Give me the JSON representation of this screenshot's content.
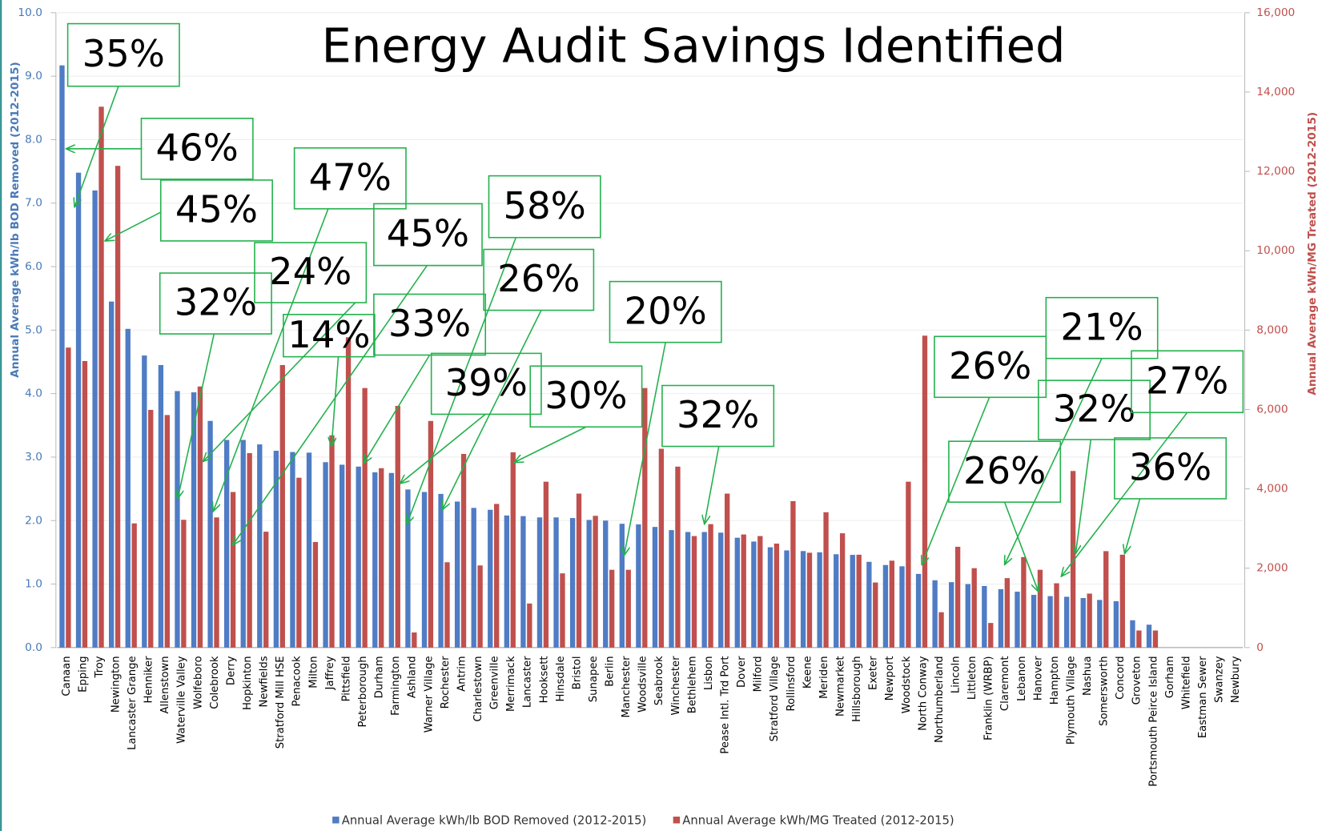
{
  "chart_data": {
    "type": "bar",
    "title": "Energy Audit Savings Identified",
    "y_label": "Annual Average kWh/lb BOD Removed (2012-2015)",
    "y2_label": "Annual Average kWh/MG Treated (2012-2015)",
    "categories": [
      "Canaan",
      "Epping",
      "Troy",
      "Newington",
      "Lancaster Grange",
      "Henniker",
      "Allenstown",
      "Waterville Valley",
      "Wolfeboro",
      "Colebrook",
      "Derry",
      "Hopkinton",
      "Newfields",
      "Stratford Mill HSE",
      "Penacook",
      "Milton",
      "Jaffrey",
      "Pittsfield",
      "Peterborough",
      "Durham",
      "Farmington",
      "Ashland",
      "Warner Village",
      "Rochester",
      "Antrim",
      "Charlestown",
      "Greenville",
      "Merrimack",
      "Lancaster",
      "Hooksett",
      "Hinsdale",
      "Bristol",
      "Sunapee",
      "Berlin",
      "Manchester",
      "Woodsville",
      "Seabrook",
      "Winchester",
      "Bethlehem",
      "Lisbon",
      "Pease Intl. Trd Port",
      "Dover",
      "Milford",
      "Stratford Village",
      "Rollinsford",
      "Keene",
      "Meriden",
      "Newmarket",
      "Hillsborough",
      "Exeter",
      "Newport",
      "Woodstock",
      "North Conway",
      "Northumberland",
      "Lincoln",
      "Littleton",
      "Franklin (WRBP)",
      "Claremont",
      "Lebanon",
      "Hanover",
      "Hampton",
      "Plymouth Village",
      "Nashua",
      "Somersworth",
      "Concord",
      "Groveton",
      "Portsmouth Peirce Island",
      "Gorham",
      "Whitefield",
      "Eastman Sewer",
      "Swanzey",
      "Newbury"
    ],
    "series": [
      {
        "name": "Annual Average kWh/lb BOD Removed (2012-2015)",
        "color": "#4f7cc4",
        "axis": "y",
        "values": [
          9.17,
          7.48,
          7.2,
          5.45,
          5.02,
          4.6,
          4.45,
          4.04,
          4.02,
          3.57,
          3.27,
          3.27,
          3.2,
          3.1,
          3.08,
          3.07,
          2.92,
          2.88,
          2.85,
          2.76,
          2.75,
          2.49,
          2.45,
          2.42,
          2.3,
          2.2,
          2.17,
          2.08,
          2.07,
          2.05,
          2.05,
          2.04,
          2.01,
          2.0,
          1.95,
          1.94,
          1.9,
          1.85,
          1.82,
          1.82,
          1.81,
          1.73,
          1.67,
          1.58,
          1.53,
          1.52,
          1.5,
          1.47,
          1.46,
          1.35,
          1.3,
          1.28,
          1.16,
          1.06,
          1.03,
          1.0,
          0.97,
          0.92,
          0.88,
          0.83,
          0.81,
          0.8,
          0.78,
          0.75,
          0.73,
          0.43,
          0.36,
          null,
          null,
          null,
          null,
          null
        ]
      },
      {
        "name": "Annual Average kWh/MG Treated (2012-2015)",
        "color": "#c0504d",
        "axis": "y2",
        "values": [
          7560,
          7220,
          13630,
          12140,
          3130,
          5990,
          5860,
          3220,
          6580,
          3280,
          3920,
          4900,
          2920,
          7120,
          4280,
          2660,
          5350,
          7820,
          6540,
          4520,
          6090,
          380,
          5710,
          2150,
          4880,
          2070,
          3620,
          4920,
          1110,
          4180,
          1870,
          3880,
          3320,
          1960,
          1960,
          6540,
          5010,
          4560,
          2810,
          3110,
          3880,
          2850,
          2810,
          2620,
          3690,
          2390,
          3410,
          2880,
          2340,
          1640,
          2190,
          4180,
          7860,
          890,
          2540,
          2000,
          620,
          1750,
          2280,
          1960,
          1620,
          4450,
          1360,
          2430,
          2340,
          430,
          430,
          null,
          null,
          null,
          null,
          null
        ]
      }
    ],
    "ylim": [
      0,
      10
    ],
    "yticks": [
      {
        "value": 0,
        "label": "0.0"
      },
      {
        "value": 1,
        "label": "1.0"
      },
      {
        "value": 2,
        "label": "2.0"
      },
      {
        "value": 3,
        "label": "3.0"
      },
      {
        "value": 4,
        "label": "4.0"
      },
      {
        "value": 5,
        "label": "5.0"
      },
      {
        "value": 6,
        "label": "6.0"
      },
      {
        "value": 7,
        "label": "7.0"
      },
      {
        "value": 8,
        "label": "8.0"
      },
      {
        "value": 9,
        "label": "9.0"
      },
      {
        "value": 10,
        "label": "10.0"
      }
    ],
    "y2lim": [
      0,
      16000
    ],
    "y2ticks": [
      0,
      {
        "value": 2000,
        "label": "2,000"
      },
      {
        "value": 4000,
        "label": "4,000"
      },
      {
        "value": 6000,
        "label": "6,000"
      },
      {
        "value": 8000,
        "label": "8,000"
      },
      {
        "value": 10000,
        "label": "10,000"
      },
      {
        "value": 12000,
        "label": "12,000"
      },
      {
        "value": 14000,
        "label": "14,000"
      },
      {
        "value": 16000,
        "label": "16,000"
      }
    ],
    "grid": true,
    "legend": "bottom",
    "annotations": [
      {
        "text": "35%"
      },
      {
        "text": "46%"
      },
      {
        "text": "45%"
      },
      {
        "text": "47%"
      },
      {
        "text": "45%"
      },
      {
        "text": "24%"
      },
      {
        "text": "32%"
      },
      {
        "text": "58%"
      },
      {
        "text": "26%"
      },
      {
        "text": "14%"
      },
      {
        "text": "33%"
      },
      {
        "text": "39%"
      },
      {
        "text": "30%"
      },
      {
        "text": "20%"
      },
      {
        "text": "32%"
      },
      {
        "text": "26%"
      },
      {
        "text": "21%"
      },
      {
        "text": "32%"
      },
      {
        "text": "27%"
      },
      {
        "text": "26%"
      },
      {
        "text": "36%"
      }
    ]
  }
}
